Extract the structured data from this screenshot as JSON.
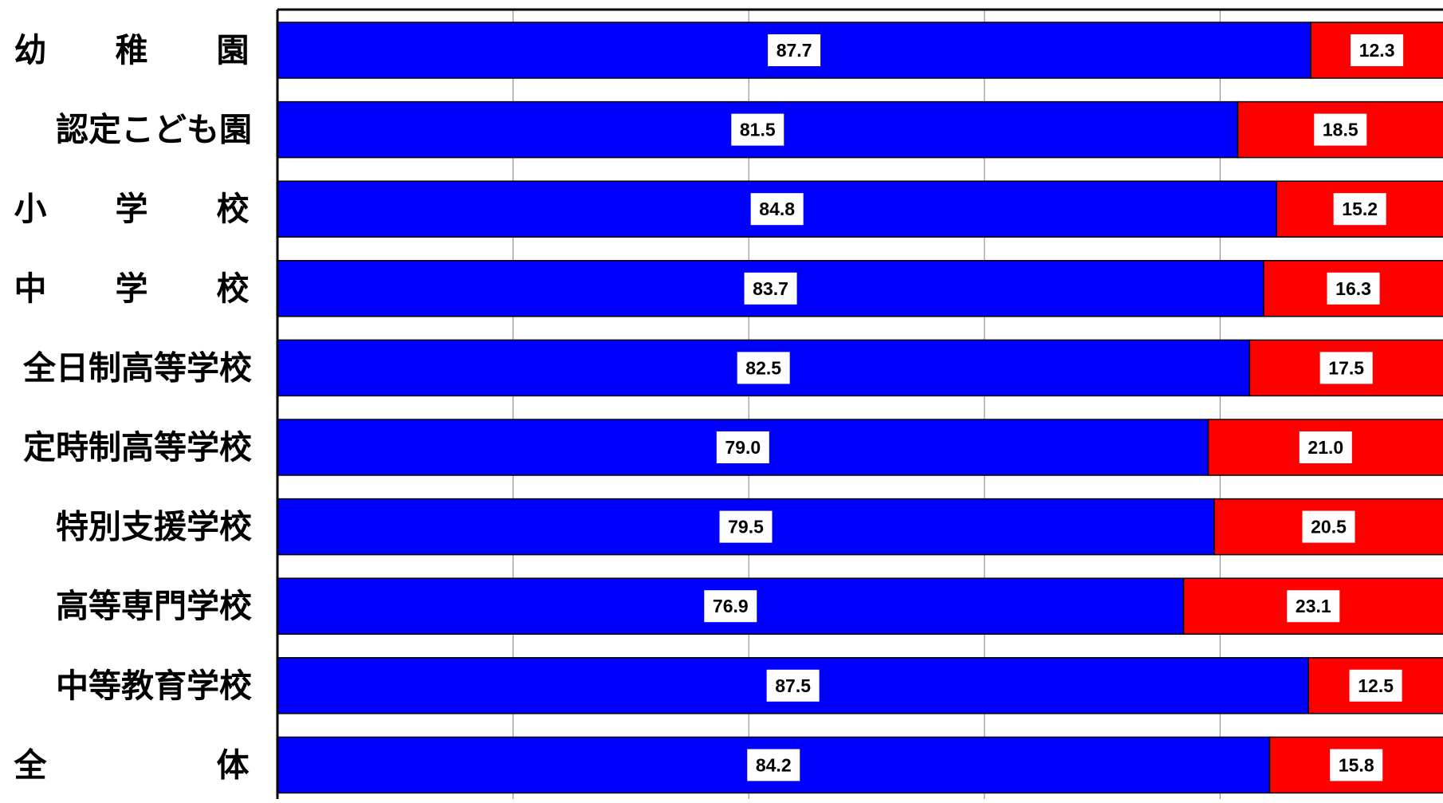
{
  "chart_data": {
    "type": "bar",
    "orientation": "horizontal",
    "stacked": true,
    "categories": [
      "幼稚園",
      "認定こども園",
      "小学校",
      "中学校",
      "全日制高等学校",
      "定時制高等学校",
      "特別支援学校",
      "高等専門学校",
      "中等教育学校",
      "全体"
    ],
    "series": [
      {
        "values": [
          87.7,
          81.5,
          84.8,
          83.7,
          82.5,
          79.0,
          79.5,
          76.9,
          87.5,
          84.2
        ],
        "color": "#0000ff"
      },
      {
        "values": [
          12.3,
          18.5,
          15.2,
          16.3,
          17.5,
          21.0,
          20.5,
          23.1,
          12.5,
          15.8
        ],
        "color": "#ff0000"
      }
    ],
    "value_labels": [
      [
        "87.7",
        "81.5",
        "84.8",
        "83.7",
        "82.5",
        "79.0",
        "79.5",
        "76.9",
        "87.5",
        "84.2"
      ],
      [
        "12.3",
        "18.5",
        "15.2",
        "16.3",
        "17.5",
        "21.0",
        "20.5",
        "23.1",
        "12.5",
        "15.8"
      ]
    ],
    "xlim": [
      0,
      100
    ],
    "grid": true,
    "gridline_step": 20,
    "colors": {
      "axis": "#000000",
      "grid": "#808080",
      "label_box": "#ffffff"
    }
  }
}
